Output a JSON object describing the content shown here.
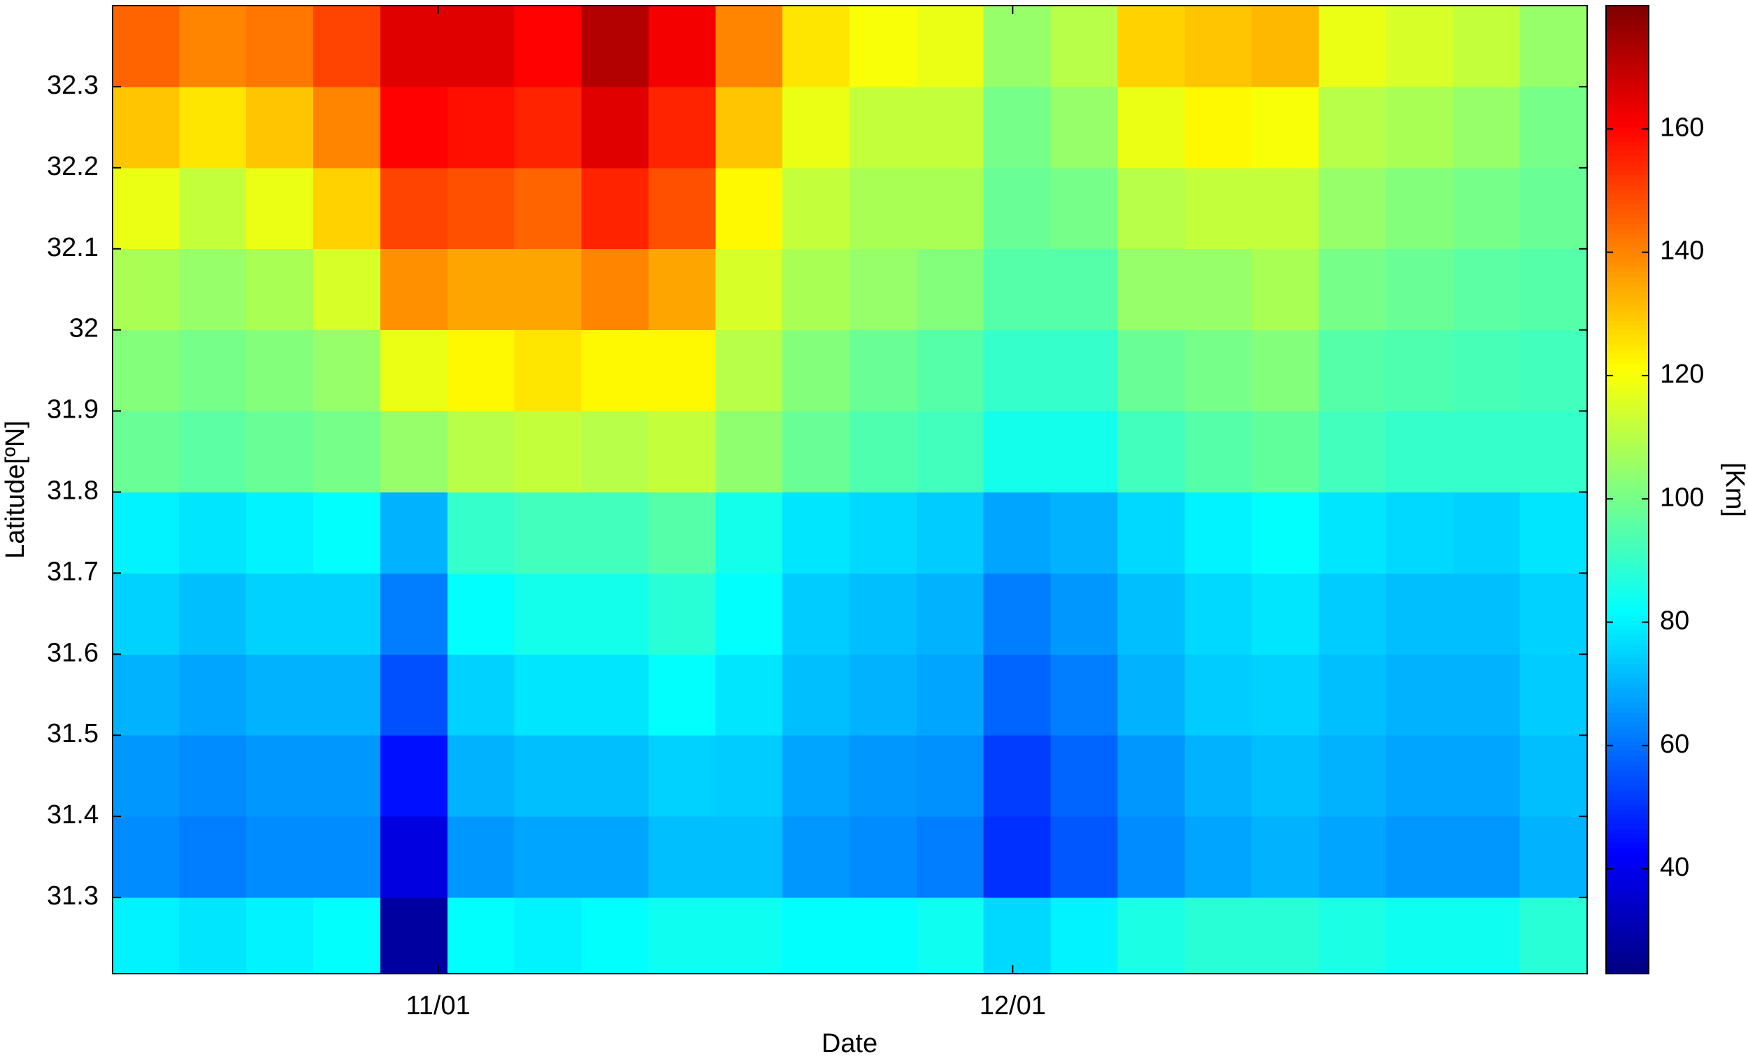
{
  "chart_data": {
    "type": "heatmap",
    "colormap": "jet",
    "x_label": "Date",
    "y_label": "Latitude[ºN]",
    "colorbar_label": "[Km]",
    "x": [
      289.75,
      293.25,
      296.75,
      300.25,
      303.75,
      307.25,
      310.75,
      314.25,
      317.75,
      321.25,
      324.75,
      328.25,
      331.75,
      335.25,
      338.75,
      342.25,
      345.75,
      349.25,
      352.75,
      356.25,
      359.75,
      363.25
    ],
    "y": [
      31.25,
      31.35,
      31.45,
      31.55,
      31.65,
      31.75,
      31.85,
      31.95,
      32.05,
      32.15,
      32.25,
      32.35
    ],
    "z": [
      [
        80,
        78,
        80,
        82,
        28,
        82,
        80,
        82,
        84,
        84,
        82,
        82,
        84,
        76,
        80,
        86,
        88,
        88,
        86,
        84,
        84,
        88
      ],
      [
        64,
        62,
        64,
        64,
        38,
        66,
        68,
        68,
        72,
        72,
        66,
        64,
        62,
        50,
        56,
        64,
        68,
        70,
        68,
        66,
        66,
        70
      ],
      [
        66,
        64,
        66,
        66,
        45,
        70,
        72,
        72,
        75,
        74,
        68,
        66,
        65,
        52,
        58,
        66,
        70,
        72,
        70,
        68,
        68,
        72
      ],
      [
        70,
        68,
        70,
        70,
        55,
        75,
        78,
        78,
        82,
        78,
        72,
        70,
        68,
        58,
        62,
        70,
        74,
        75,
        72,
        70,
        70,
        74
      ],
      [
        75,
        72,
        75,
        75,
        62,
        82,
        85,
        85,
        88,
        82,
        74,
        72,
        70,
        62,
        66,
        72,
        76,
        78,
        74,
        72,
        72,
        75
      ],
      [
        80,
        78,
        80,
        82,
        70,
        90,
        92,
        92,
        95,
        85,
        78,
        76,
        74,
        68,
        70,
        76,
        80,
        82,
        78,
        76,
        75,
        78
      ],
      [
        98,
        96,
        98,
        100,
        105,
        110,
        112,
        110,
        112,
        104,
        98,
        94,
        92,
        85,
        85,
        92,
        95,
        97,
        92,
        90,
        90,
        90
      ],
      [
        102,
        100,
        102,
        105,
        118,
        122,
        125,
        122,
        122,
        110,
        102,
        98,
        95,
        90,
        90,
        98,
        100,
        102,
        95,
        94,
        93,
        92
      ],
      [
        108,
        105,
        108,
        115,
        138,
        135,
        135,
        140,
        135,
        115,
        108,
        105,
        102,
        95,
        95,
        105,
        105,
        108,
        100,
        98,
        96,
        95
      ],
      [
        118,
        112,
        118,
        128,
        150,
        148,
        145,
        155,
        148,
        122,
        112,
        108,
        108,
        98,
        100,
        110,
        112,
        112,
        105,
        102,
        100,
        98
      ],
      [
        130,
        125,
        130,
        140,
        160,
        158,
        155,
        165,
        155,
        130,
        118,
        112,
        112,
        100,
        105,
        118,
        122,
        120,
        110,
        108,
        105,
        100
      ],
      [
        145,
        140,
        142,
        150,
        165,
        165,
        160,
        172,
        162,
        140,
        125,
        120,
        118,
        105,
        110,
        128,
        130,
        132,
        118,
        115,
        112,
        105
      ]
    ],
    "xlim": [
      288,
      365
    ],
    "xticks": [
      {
        "value": 305,
        "label": "11/01"
      },
      {
        "value": 335,
        "label": "12/01"
      }
    ],
    "ylim": [
      31.206,
      32.4
    ],
    "yticks": [
      31.3,
      31.4,
      31.5,
      31.6,
      31.7,
      31.8,
      31.9,
      32,
      32.1,
      32.2,
      32.3
    ],
    "zlim": [
      23,
      180
    ],
    "zticks": [
      40,
      60,
      80,
      100,
      120,
      140,
      160
    ],
    "grid": false
  }
}
